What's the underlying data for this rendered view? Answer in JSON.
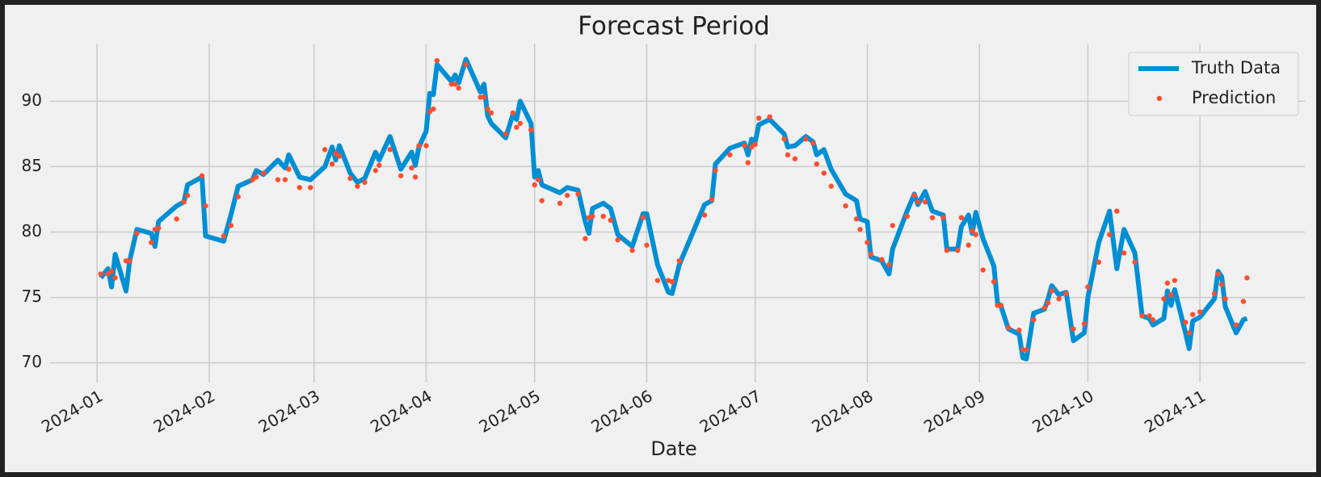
{
  "chart_data": {
    "type": "line",
    "title": "Forecast Period",
    "x_label": "Date",
    "x": [
      "2024-01-02",
      "2024-01-04",
      "2024-01-05",
      "2024-01-06",
      "2024-01-09",
      "2024-01-10",
      "2024-01-12",
      "2024-01-16",
      "2024-01-17",
      "2024-01-18",
      "2024-01-23",
      "2024-01-25",
      "2024-01-26",
      "2024-01-30",
      "2024-01-31",
      "2024-02-05",
      "2024-02-07",
      "2024-02-09",
      "2024-02-13",
      "2024-02-14",
      "2024-02-16",
      "2024-02-20",
      "2024-02-22",
      "2024-02-23",
      "2024-02-26",
      "2024-02-29",
      "2024-03-04",
      "2024-03-06",
      "2024-03-07",
      "2024-03-08",
      "2024-03-11",
      "2024-03-13",
      "2024-03-15",
      "2024-03-18",
      "2024-03-19",
      "2024-03-22",
      "2024-03-25",
      "2024-03-28",
      "2024-03-29",
      "2024-03-30",
      "2024-04-01",
      "2024-04-02",
      "2024-04-03",
      "2024-04-04",
      "2024-04-08",
      "2024-04-09",
      "2024-04-10",
      "2024-04-12",
      "2024-04-16",
      "2024-04-17",
      "2024-04-18",
      "2024-04-19",
      "2024-04-23",
      "2024-04-25",
      "2024-04-26",
      "2024-04-27",
      "2024-04-30",
      "2024-05-01",
      "2024-05-02",
      "2024-05-03",
      "2024-05-08",
      "2024-05-10",
      "2024-05-13",
      "2024-05-15",
      "2024-05-16",
      "2024-05-17",
      "2024-05-20",
      "2024-05-22",
      "2024-05-24",
      "2024-05-28",
      "2024-05-31",
      "2024-06-01",
      "2024-06-04",
      "2024-06-07",
      "2024-06-08",
      "2024-06-10",
      "2024-06-17",
      "2024-06-19",
      "2024-06-20",
      "2024-06-24",
      "2024-06-28",
      "2024-06-29",
      "2024-06-30",
      "2024-07-01",
      "2024-07-02",
      "2024-07-05",
      "2024-07-09",
      "2024-07-10",
      "2024-07-12",
      "2024-07-15",
      "2024-07-17",
      "2024-07-18",
      "2024-07-20",
      "2024-07-22",
      "2024-07-26",
      "2024-07-29",
      "2024-07-30",
      "2024-08-01",
      "2024-08-02",
      "2024-08-05",
      "2024-08-07",
      "2024-08-08",
      "2024-08-12",
      "2024-08-14",
      "2024-08-15",
      "2024-08-17",
      "2024-08-19",
      "2024-08-22",
      "2024-08-23",
      "2024-08-26",
      "2024-08-27",
      "2024-08-29",
      "2024-08-30",
      "2024-08-31",
      "2024-09-02",
      "2024-09-05",
      "2024-09-06",
      "2024-09-07",
      "2024-09-09",
      "2024-09-12",
      "2024-09-13",
      "2024-09-14",
      "2024-09-16",
      "2024-09-19",
      "2024-09-20",
      "2024-09-21",
      "2024-09-23",
      "2024-09-25",
      "2024-09-27",
      "2024-09-30",
      "2024-10-01",
      "2024-10-04",
      "2024-10-07",
      "2024-10-09",
      "2024-10-11",
      "2024-10-14",
      "2024-10-16",
      "2024-10-18",
      "2024-10-19",
      "2024-10-22",
      "2024-10-23",
      "2024-10-24",
      "2024-10-25",
      "2024-10-28",
      "2024-10-29",
      "2024-10-30",
      "2024-11-01",
      "2024-11-05",
      "2024-11-06",
      "2024-11-07",
      "2024-11-08",
      "2024-11-11",
      "2024-11-13",
      "2024-11-14"
    ],
    "series": [
      {
        "name": "Truth Data",
        "color": "#008fd5",
        "style": "line",
        "values": [
          76.5,
          77.2,
          75.8,
          78.3,
          75.5,
          77.8,
          80.2,
          79.9,
          78.9,
          80.8,
          82.0,
          82.3,
          83.6,
          84.2,
          79.7,
          79.3,
          81.3,
          83.5,
          84.0,
          84.7,
          84.4,
          85.5,
          84.9,
          85.9,
          84.2,
          84.0,
          85.0,
          86.5,
          85.5,
          86.6,
          84.5,
          83.8,
          84.1,
          86.1,
          85.5,
          87.3,
          84.8,
          86.1,
          85.1,
          86.5,
          87.7,
          90.6,
          90.5,
          92.8,
          91.5,
          92.0,
          91.4,
          93.2,
          90.7,
          91.3,
          88.9,
          88.3,
          87.2,
          89.0,
          88.6,
          90.0,
          88.3,
          84.2,
          84.7,
          83.6,
          83.0,
          83.4,
          83.2,
          80.8,
          79.9,
          81.8,
          82.2,
          81.8,
          79.8,
          78.9,
          81.4,
          81.4,
          77.5,
          75.4,
          75.3,
          77.5,
          82.1,
          82.4,
          85.2,
          86.4,
          86.8,
          85.9,
          87.1,
          86.9,
          88.2,
          88.6,
          87.5,
          86.5,
          86.6,
          87.3,
          86.9,
          85.9,
          86.3,
          84.8,
          82.9,
          82.4,
          81.0,
          80.8,
          78.1,
          77.8,
          76.8,
          78.7,
          81.6,
          82.9,
          82.1,
          83.1,
          81.6,
          81.3,
          78.7,
          78.7,
          80.4,
          81.3,
          79.9,
          81.5,
          79.5,
          77.4,
          74.6,
          74.3,
          72.6,
          72.2,
          70.4,
          70.3,
          73.8,
          74.1,
          74.9,
          75.9,
          75.2,
          75.4,
          71.7,
          72.3,
          75.0,
          79.2,
          81.6,
          77.2,
          80.2,
          78.4,
          73.6,
          73.4,
          72.9,
          73.4,
          75.5,
          74.4,
          75.6,
          72.3,
          71.1,
          73.2,
          73.5,
          74.9,
          77.0,
          76.6,
          74.3,
          72.3,
          73.3,
          73.4
        ]
      },
      {
        "name": "Prediction",
        "color": "#fc4f30",
        "style": "dots",
        "values": [
          76.8,
          76.8,
          77.0,
          76.5,
          77.8,
          77.8,
          79.9,
          79.2,
          80.2,
          80.3,
          81.0,
          82.3,
          82.8,
          84.3,
          82.0,
          79.7,
          80.5,
          82.7,
          84.0,
          84.2,
          84.5,
          84.0,
          84.0,
          84.8,
          83.4,
          83.4,
          86.3,
          85.2,
          86.0,
          85.8,
          84.1,
          83.5,
          83.8,
          84.7,
          85.1,
          86.3,
          84.3,
          84.9,
          84.2,
          86.6,
          86.6,
          89.2,
          89.4,
          93.1,
          91.3,
          91.3,
          91.0,
          92.8,
          90.3,
          90.3,
          89.4,
          89.1,
          87.5,
          89.1,
          88.0,
          88.3,
          87.8,
          83.6,
          84.0,
          82.4,
          82.2,
          82.8,
          82.9,
          79.5,
          81.1,
          81.2,
          81.2,
          80.9,
          79.4,
          78.6,
          81.1,
          79.0,
          76.3,
          76.3,
          76.2,
          77.8,
          81.3,
          82.5,
          84.7,
          85.9,
          86.6,
          85.3,
          86.5,
          86.7,
          88.7,
          88.8,
          87.1,
          85.9,
          85.6,
          87.1,
          86.8,
          85.2,
          84.5,
          83.5,
          82.0,
          81.0,
          80.2,
          79.2,
          78.3,
          77.9,
          77.5,
          80.5,
          81.2,
          82.8,
          82.3,
          82.3,
          81.1,
          81.1,
          78.6,
          78.6,
          81.1,
          79.0,
          80.1,
          79.8,
          77.1,
          76.2,
          74.4,
          74.4,
          72.7,
          72.5,
          71.0,
          71.0,
          73.3,
          74.2,
          74.6,
          75.5,
          74.9,
          75.3,
          72.6,
          73.0,
          75.8,
          77.7,
          79.8,
          81.6,
          78.4,
          77.7,
          73.6,
          73.6,
          73.3,
          74.9,
          76.1,
          75.2,
          76.3,
          73.1,
          72.3,
          73.7,
          73.9,
          75.3,
          76.8,
          76.0,
          74.9,
          72.9,
          74.7,
          76.5
        ]
      }
    ],
    "xlim": [
      "2023-12-19",
      "2024-11-30"
    ],
    "xticks": [
      "2024-01",
      "2024-02",
      "2024-03",
      "2024-04",
      "2024-05",
      "2024-06",
      "2024-07",
      "2024-08",
      "2024-09",
      "2024-10",
      "2024-11"
    ],
    "ylim": [
      68.5,
      94.4
    ],
    "yticks": [
      70,
      75,
      80,
      85,
      90
    ],
    "grid": true,
    "legend": "upper right"
  }
}
